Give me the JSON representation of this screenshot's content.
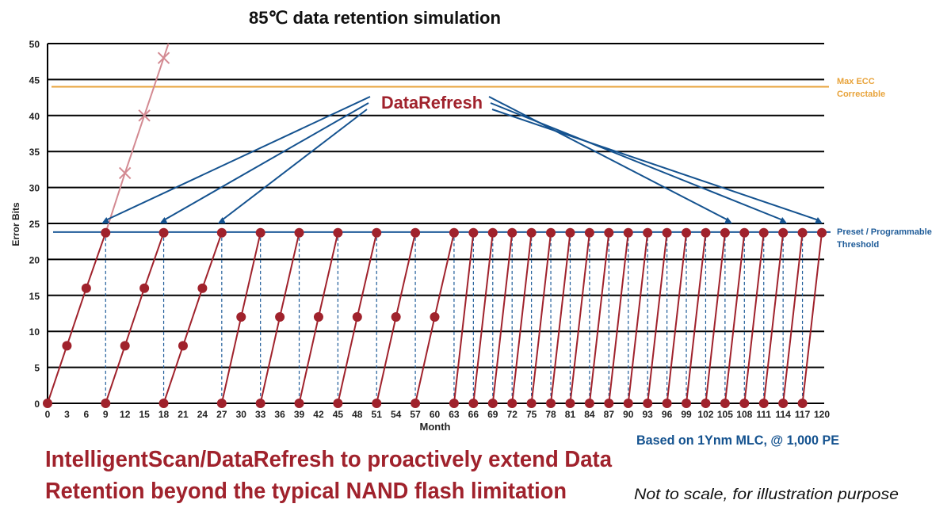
{
  "colors": {
    "cycle": "#A0222C",
    "no_refresh": "#D38A92",
    "threshold": "#1F5C99",
    "ecc": "#E8A33A",
    "grid": "#000000",
    "arrow": "#14528F"
  },
  "chart_data": {
    "type": "line",
    "title": "85℃ data retention simulation",
    "xlabel": "Month",
    "ylabel": "Error Bits",
    "xlim": [
      0,
      120
    ],
    "ylim": [
      0,
      50
    ],
    "x_ticks": [
      0,
      3,
      6,
      9,
      12,
      15,
      18,
      21,
      24,
      27,
      30,
      33,
      36,
      39,
      42,
      45,
      48,
      51,
      54,
      57,
      60,
      63,
      66,
      69,
      72,
      75,
      78,
      81,
      84,
      87,
      90,
      93,
      96,
      99,
      102,
      105,
      108,
      111,
      114,
      117,
      120
    ],
    "y_ticks": [
      0,
      5,
      10,
      15,
      20,
      25,
      30,
      35,
      40,
      45,
      50
    ],
    "grid": "horizontal",
    "reference_lines": [
      {
        "label": "Max ECC Correctable",
        "label_lines": [
          "Max ECC",
          "Correctable"
        ],
        "value": 44,
        "color": "#E8A33A"
      },
      {
        "label": "Preset / Programmable Threshold",
        "label_lines": [
          "Preset / Programmable",
          "Threshold"
        ],
        "value": 23.8,
        "color": "#1F5C99"
      }
    ],
    "no_refresh_series": [
      [
        9,
        23.7
      ],
      [
        12,
        32
      ],
      [
        15,
        40
      ],
      [
        18,
        48
      ]
    ],
    "refresh_cycles": [
      [
        [
          0,
          0
        ],
        [
          3,
          8
        ],
        [
          6,
          16
        ],
        [
          9,
          23.7
        ]
      ],
      [
        [
          9,
          0
        ],
        [
          12,
          8
        ],
        [
          15,
          16
        ],
        [
          18,
          23.7
        ]
      ],
      [
        [
          18,
          0
        ],
        [
          21,
          8
        ],
        [
          24,
          16
        ],
        [
          27,
          23.7
        ]
      ],
      [
        [
          27,
          0
        ],
        [
          30,
          12
        ],
        [
          33,
          23.7
        ]
      ],
      [
        [
          33,
          0
        ],
        [
          36,
          12
        ],
        [
          39,
          23.7
        ]
      ],
      [
        [
          39,
          0
        ],
        [
          42,
          12
        ],
        [
          45,
          23.7
        ]
      ],
      [
        [
          45,
          0
        ],
        [
          48,
          12
        ],
        [
          51,
          23.7
        ]
      ],
      [
        [
          51,
          0
        ],
        [
          54,
          12
        ],
        [
          57,
          23.7
        ]
      ],
      [
        [
          57,
          0
        ],
        [
          60,
          12
        ],
        [
          63,
          23.7
        ]
      ],
      [
        [
          63,
          0
        ],
        [
          66,
          23.7
        ]
      ],
      [
        [
          66,
          0
        ],
        [
          69,
          23.7
        ]
      ],
      [
        [
          69,
          0
        ],
        [
          72,
          23.7
        ]
      ],
      [
        [
          72,
          0
        ],
        [
          75,
          23.7
        ]
      ],
      [
        [
          75,
          0
        ],
        [
          78,
          23.7
        ]
      ],
      [
        [
          78,
          0
        ],
        [
          81,
          23.7
        ]
      ],
      [
        [
          81,
          0
        ],
        [
          84,
          23.7
        ]
      ],
      [
        [
          84,
          0
        ],
        [
          87,
          23.7
        ]
      ],
      [
        [
          87,
          0
        ],
        [
          90,
          23.7
        ]
      ],
      [
        [
          90,
          0
        ],
        [
          93,
          23.7
        ]
      ],
      [
        [
          93,
          0
        ],
        [
          96,
          23.7
        ]
      ],
      [
        [
          96,
          0
        ],
        [
          99,
          23.7
        ]
      ],
      [
        [
          99,
          0
        ],
        [
          102,
          23.7
        ]
      ],
      [
        [
          102,
          0
        ],
        [
          105,
          23.7
        ]
      ],
      [
        [
          105,
          0
        ],
        [
          108,
          23.7
        ]
      ],
      [
        [
          108,
          0
        ],
        [
          111,
          23.7
        ]
      ],
      [
        [
          111,
          0
        ],
        [
          114,
          23.7
        ]
      ],
      [
        [
          114,
          0
        ],
        [
          117,
          23.7
        ]
      ],
      [
        [
          117,
          0
        ],
        [
          120,
          23.7
        ]
      ]
    ],
    "refresh_months": [
      9,
      18,
      27,
      33,
      39,
      45,
      51,
      57,
      63,
      66,
      69,
      72,
      75,
      78,
      81,
      84,
      87,
      90,
      93,
      96,
      99,
      102,
      105,
      108,
      111,
      114,
      117
    ],
    "annotation": {
      "label": "DataRefresh",
      "arrow_targets_month": [
        9,
        18,
        27,
        105.5,
        114,
        119.5
      ],
      "arrow_target_bits": 25
    }
  },
  "notes": {
    "basis": "Based on 1Ynm MLC, @ 1,000 PE",
    "headline_lines": [
      "IntelligentScan/DataRefresh to proactively extend Data",
      "Retention beyond the typical NAND flash limitation"
    ],
    "disclaimer": "Not to scale, for illustration purpose"
  }
}
